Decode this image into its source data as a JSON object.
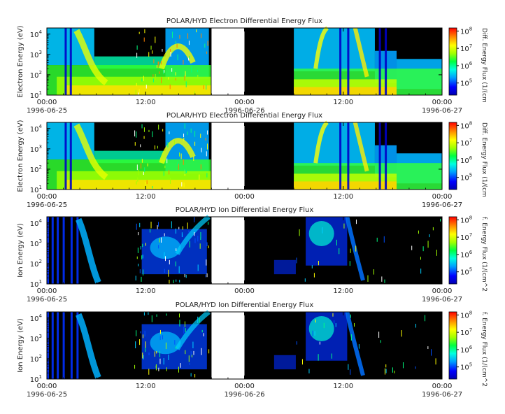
{
  "chart_data": [
    {
      "type": "heatmap",
      "title": "POLAR/HYD  Electron Differential Energy Flux",
      "ylabel": "Electron Energy (eV)",
      "zlabel": "Diff. Energy Flux (1/(cm",
      "yscale": "log",
      "ylim": [
        10,
        20000
      ],
      "zscale": "log",
      "zlim": [
        20000,
        150000000
      ],
      "xlim": [
        "1996-06-25 00:00",
        "1996-06-27 00:00"
      ],
      "x_ticks": [
        {
          "time": "00:00",
          "date": "1996-06-25"
        },
        {
          "time": "12:00",
          "date": ""
        },
        {
          "time": "00:00",
          "date": "1996-06-26"
        },
        {
          "time": "12:00",
          "date": ""
        },
        {
          "time": "00:00",
          "date": "1996-06-27"
        }
      ],
      "y_ticks": [
        "10",
        "10",
        "10",
        "10"
      ],
      "y_exps": [
        "1",
        "2",
        "3",
        "4"
      ],
      "z_ticks": [
        "10",
        "10",
        "10",
        "10"
      ],
      "z_exps": [
        "5",
        "6",
        "7",
        "8"
      ],
      "data_gap": [
        "1996-06-25 20:00",
        "1996-06-26 00:00"
      ]
    },
    {
      "type": "heatmap",
      "title": "POLAR/HYD  Electron Differential Energy Flux",
      "ylabel": "Electron Energy (eV)",
      "zlabel": "Diff. Energy Flux (1/(cm",
      "yscale": "log",
      "ylim": [
        10,
        20000
      ],
      "zscale": "log",
      "zlim": [
        20000,
        150000000
      ],
      "xlim": [
        "1996-06-25 00:00",
        "1996-06-27 00:00"
      ],
      "x_ticks": [
        {
          "time": "00:00",
          "date": "1996-06-25"
        },
        {
          "time": "12:00",
          "date": ""
        },
        {
          "time": "00:00",
          "date": ""
        },
        {
          "time": "12:00",
          "date": ""
        },
        {
          "time": "00:00",
          "date": "1996-06-27"
        }
      ],
      "y_ticks": [
        "10",
        "10",
        "10",
        "10"
      ],
      "y_exps": [
        "1",
        "2",
        "3",
        "4"
      ],
      "z_ticks": [
        "10",
        "10",
        "10",
        "10"
      ],
      "z_exps": [
        "5",
        "6",
        "7",
        "8"
      ],
      "data_gap": [
        "1996-06-25 20:00",
        "1996-06-26 00:00"
      ]
    },
    {
      "type": "heatmap",
      "title": "POLAR/HYD  Ion Differential Energy Flux",
      "ylabel": "Ion Energy (eV)",
      "zlabel": "f. Energy Flux (1/(cm^2",
      "yscale": "log",
      "ylim": [
        10,
        20000
      ],
      "zscale": "log",
      "zlim": [
        20000,
        150000000
      ],
      "xlim": [
        "1996-06-25 00:00",
        "1996-06-27 00:00"
      ],
      "x_ticks": [
        {
          "time": "00:00",
          "date": "1996-06-25"
        },
        {
          "time": "12:00",
          "date": ""
        },
        {
          "time": "00:00",
          "date": ""
        },
        {
          "time": "12:00",
          "date": ""
        },
        {
          "time": "00:00",
          "date": "1996-06-27"
        }
      ],
      "y_ticks": [
        "10",
        "10",
        "10",
        "10"
      ],
      "y_exps": [
        "1",
        "2",
        "3",
        "4"
      ],
      "z_ticks": [
        "10",
        "10",
        "10",
        "10"
      ],
      "z_exps": [
        "5",
        "6",
        "7",
        "8"
      ],
      "data_gap": [
        "1996-06-25 20:00",
        "1996-06-26 00:00"
      ]
    },
    {
      "type": "heatmap",
      "title": "POLAR/HYD  Ion Differential Energy Flux",
      "ylabel": "Ion Energy (eV)",
      "zlabel": "f. Energy Flux (1/(cm^2",
      "yscale": "log",
      "ylim": [
        10,
        20000
      ],
      "zscale": "log",
      "zlim": [
        20000,
        150000000
      ],
      "xlim": [
        "1996-06-25 00:00",
        "1996-06-27 00:00"
      ],
      "x_ticks": [
        {
          "time": "00:00",
          "date": "1996-06-25"
        },
        {
          "time": "12:00",
          "date": ""
        },
        {
          "time": "00:00",
          "date": "1996-06-26"
        },
        {
          "time": "12:00",
          "date": ""
        },
        {
          "time": "00:00",
          "date": "1996-06-27"
        }
      ],
      "y_ticks": [
        "10",
        "10",
        "10",
        "10"
      ],
      "y_exps": [
        "1",
        "2",
        "3",
        "4"
      ],
      "z_ticks": [
        "10",
        "10",
        "10",
        "10"
      ],
      "z_exps": [
        "5",
        "6",
        "7",
        "8"
      ],
      "data_gap": [
        "1996-06-25 20:00",
        "1996-06-26 00:00"
      ]
    }
  ]
}
